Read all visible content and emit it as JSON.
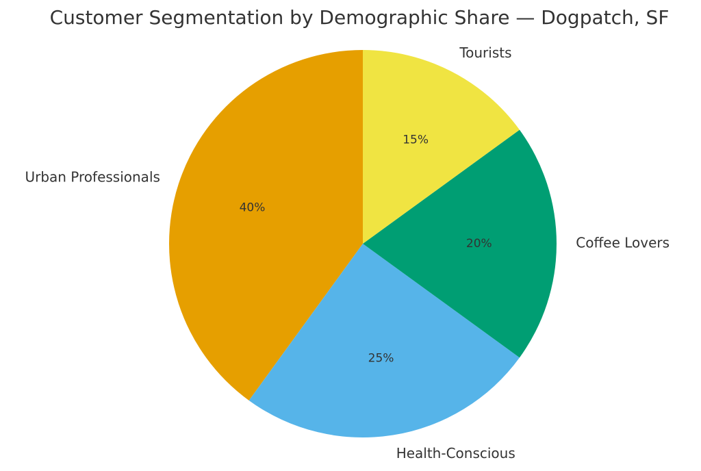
{
  "chart_data": {
    "type": "pie",
    "title": "Customer Segmentation by Demographic Share — Dogpatch, SF",
    "categories": [
      "Urban Professionals",
      "Health-Conscious",
      "Coffee Lovers",
      "Tourists"
    ],
    "values": [
      40,
      25,
      20,
      15
    ],
    "value_labels": [
      "40%",
      "25%",
      "20%",
      "15%"
    ],
    "colors": [
      "#E69F00",
      "#56B4E9",
      "#009E73",
      "#F0E442"
    ]
  }
}
